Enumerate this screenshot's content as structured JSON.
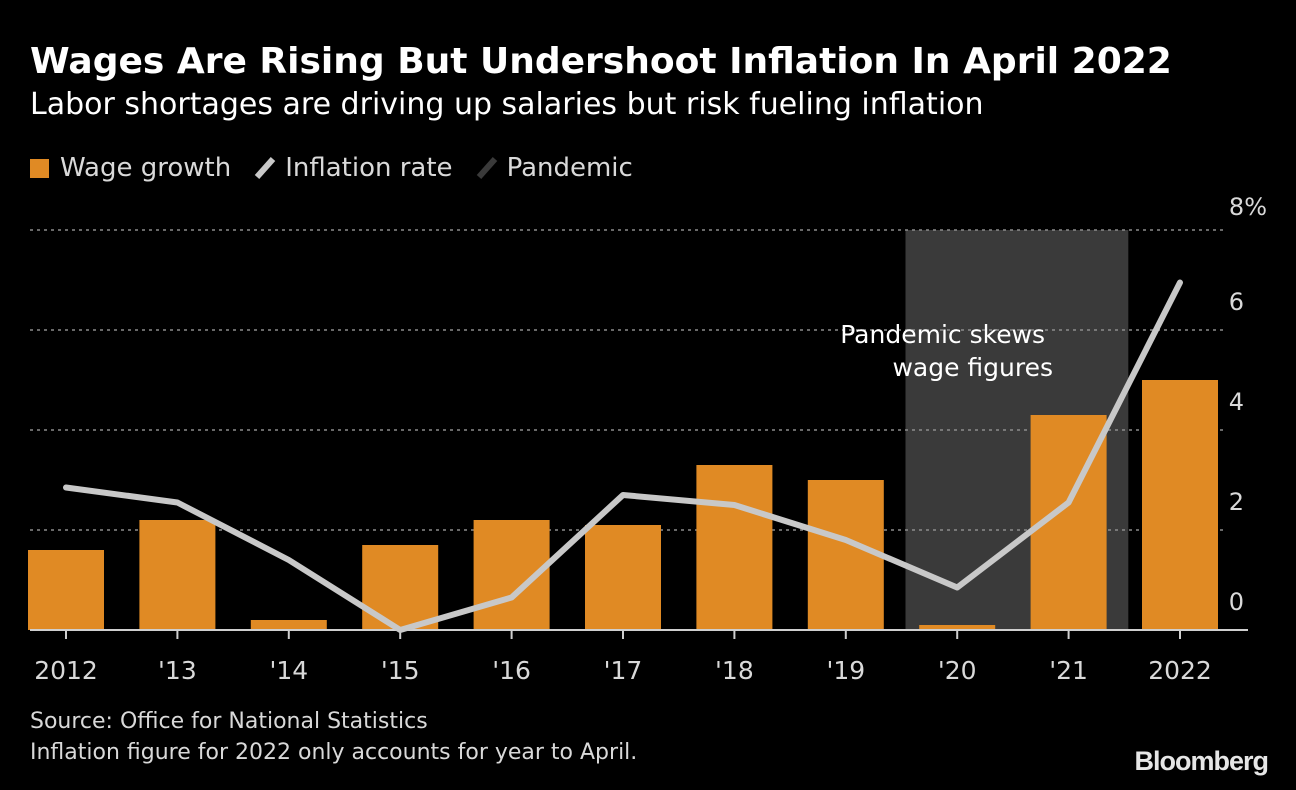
{
  "title": "Wages Are Rising But Undershoot Inflation In April 2022",
  "subtitle": "Labor shortages are driving up salaries but risk fueling inflation",
  "legend": {
    "wage": "Wage growth",
    "inflation": "Inflation rate",
    "pandemic": "Pandemic"
  },
  "colors": {
    "wage": "#e08a24",
    "inflation": "#c8c8c8",
    "pandemic": "#3a3a3a",
    "grid": "#8c8c8c",
    "axis": "#cfcfcf",
    "label": "#d9d9d9"
  },
  "chart_data": {
    "type": "bar",
    "categories": [
      "2012",
      "'13",
      "'14",
      "'15",
      "'16",
      "'17",
      "'18",
      "'19",
      "'20",
      "'21",
      "2022"
    ],
    "series": [
      {
        "name": "Wage growth",
        "type": "bar",
        "values": [
          1.6,
          2.2,
          0.2,
          1.7,
          2.2,
          2.1,
          3.3,
          3.0,
          0.1,
          4.3,
          5.0
        ]
      },
      {
        "name": "Inflation rate",
        "type": "line",
        "values": [
          2.85,
          2.55,
          1.4,
          0.0,
          0.65,
          2.7,
          2.5,
          1.8,
          0.85,
          2.55,
          6.95
        ]
      }
    ],
    "pandemic_span": [
      "'20",
      "'21"
    ],
    "y_ticks": [
      {
        "value": 0,
        "label": "0"
      },
      {
        "value": 2,
        "label": "2"
      },
      {
        "value": 4,
        "label": "4"
      },
      {
        "value": 6,
        "label": "6"
      },
      {
        "value": 8,
        "label": "8%"
      }
    ],
    "ylim": [
      0,
      8
    ],
    "grid": true,
    "annotation": {
      "lines": [
        "Pandemic skews",
        "wage figures"
      ]
    }
  },
  "footer": {
    "source": "Source: Office for National Statistics",
    "note": "Inflation figure for 2022 only accounts for year to April."
  },
  "brand": "Bloomberg"
}
